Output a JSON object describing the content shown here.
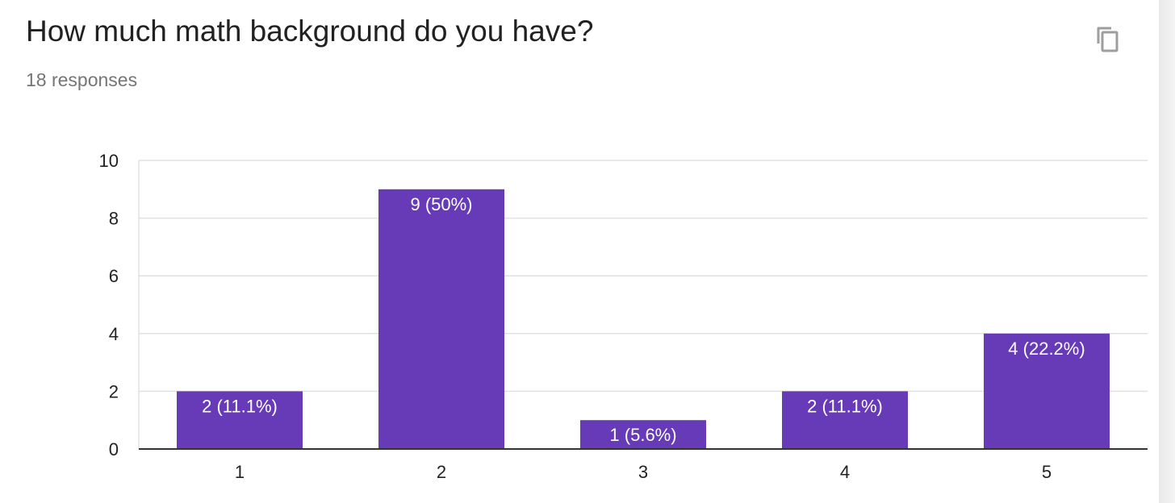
{
  "header": {
    "title": "How much math background do you have?",
    "responses": "18 responses",
    "copy_icon": "copy-icon"
  },
  "colors": {
    "bar": "#673ab7",
    "grid": "#e0e0e0",
    "axis": "#333333",
    "label_text": "#ffffff",
    "tick_text": "#222222"
  },
  "chart_data": {
    "type": "bar",
    "title": "How much math background do you have?",
    "categories": [
      "1",
      "2",
      "3",
      "4",
      "5"
    ],
    "values": [
      2,
      9,
      1,
      2,
      4
    ],
    "data_labels": [
      "2 (11.1%)",
      "9 (50%)",
      "1 (5.6%)",
      "2 (11.1%)",
      "4 (22.2%)"
    ],
    "yticks": [
      0,
      2,
      4,
      6,
      8,
      10
    ],
    "ylim": [
      0,
      10
    ],
    "xlabel": "",
    "ylabel": "",
    "grid": true
  }
}
